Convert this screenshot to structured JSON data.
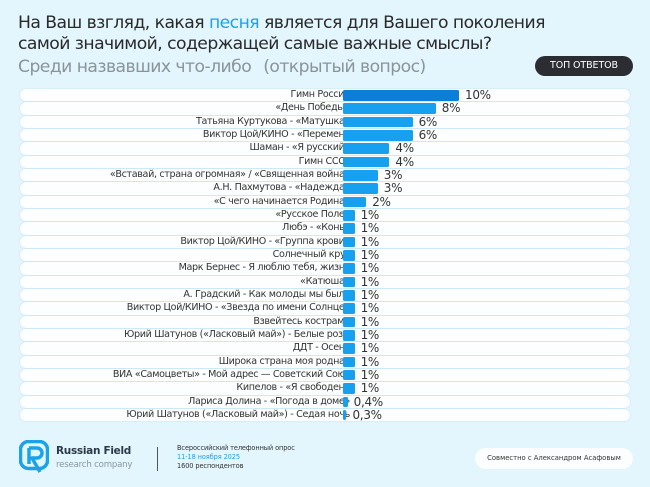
{
  "header": {
    "title_part1": "На Ваш взгляд, какая ",
    "title_highlight": "песня",
    "title_part2": " является для Вашего поколения",
    "title_line2": "самой значимой, содержащей самые важные смыслы?",
    "subtitle_main": "Среди назвавших что-либо",
    "subtitle_note": "(открытый вопрос)",
    "badge": "ТОП ОТВЕТОВ"
  },
  "colors": {
    "background": "#e3f5fd",
    "bar_top": "#0b7fd6",
    "bar": "#17a0ef",
    "highlight": "#1aa3ea",
    "badge_bg": "#2b2d33"
  },
  "chart_data": {
    "type": "bar",
    "orientation": "horizontal",
    "title": "На Ваш взгляд, какая песня является для Вашего поколения самой значимой, содержащей самые важные смыслы?",
    "subtitle": "Среди назвавших что-либо (открытый вопрос)",
    "unit": "%",
    "categories": [
      "Гимн России",
      "«День Победы»",
      "Татьяна Куртукова - «Матушка»",
      "Виктор Цой/КИНО - «Перемен»",
      "Шаман - «Я русский»",
      "Гимн СССР",
      "«Вставай, страна огромная» / «Священная война»",
      "А.Н. Пахмутова - «Надежда»",
      "«С чего начинается Родина»",
      "«Русское Поле»",
      "Любэ - «Конь»",
      "Виктор Цой/КИНО - «Группа крови»",
      "Солнечный круг",
      "Марк Бернес - Я люблю тебя, жизнь",
      "«Катюша»",
      "А. Градский - Как молоды мы были",
      "Виктор Цой/КИНО - «Звезда по имени Солнце»",
      "Взвейтесь кострами",
      "Юрий Шатунов («Ласковый май») - Белые розы",
      "ДДТ - Осень",
      "Широка страна моя родная",
      "ВИА «Самоцветы» - Мой адрес — Советский Союз",
      "Кипелов - «Я свободен»",
      "Лариса Долина - «Погода в доме»",
      "Юрий Шатунов («Ласковый май») - Седая ночь"
    ],
    "values": [
      10,
      8,
      6,
      6,
      4,
      4,
      3,
      3,
      2,
      1,
      1,
      1,
      1,
      1,
      1,
      1,
      1,
      1,
      1,
      1,
      1,
      1,
      1,
      0.4,
      0.3
    ],
    "value_labels": [
      "10%",
      "8%",
      "6%",
      "6%",
      "4%",
      "4%",
      "3%",
      "3%",
      "2%",
      "1%",
      "1%",
      "1%",
      "1%",
      "1%",
      "1%",
      "1%",
      "1%",
      "1%",
      "1%",
      "1%",
      "1%",
      "1%",
      "1%",
      "0,4%",
      "0,3%"
    ],
    "xlim": [
      0,
      10
    ],
    "grid": false,
    "legend": "none"
  },
  "footer": {
    "brand": "Russian Field",
    "brand_sub": "research company",
    "survey_type": "Всероссийский телефонный опрос",
    "survey_dates": "11-18 ноября 2025",
    "respondents": "1600 респондентов",
    "coop": "Совместно с Александром Асафовым"
  }
}
